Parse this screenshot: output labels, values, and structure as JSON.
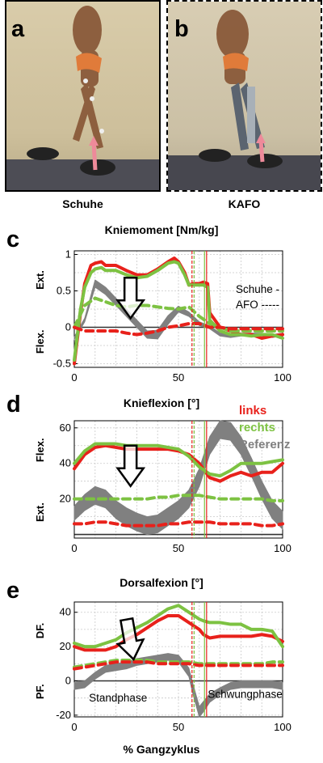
{
  "photos": {
    "a": {
      "letter": "a",
      "caption": "Schuhe"
    },
    "b": {
      "letter": "b",
      "caption": "KAFO"
    }
  },
  "x_label": "% Gangzyklus",
  "legend": {
    "links": "links",
    "rechts": "rechts",
    "referenz": "Referenz"
  },
  "colors": {
    "links": "#e8211b",
    "rechts": "#7dc242",
    "referenz": "#808080",
    "gait_arrow": "#ee8a9a"
  },
  "chart_data": [
    {
      "letter": "c",
      "type": "line",
      "title": "Kniemoment [Nm/kg]",
      "ylim": [
        -0.55,
        1.05
      ],
      "xlim": [
        0,
        100
      ],
      "x_ticks": [
        0,
        50,
        100
      ],
      "y_ticks": [
        -0.5,
        0,
        0.5,
        1
      ],
      "y_tick_labels": [
        "-0.5",
        "0",
        "0.5",
        "1"
      ],
      "y_top_label": "Ext.",
      "y_bottom_label": "Flex.",
      "grid": true,
      "annotation_lines": [
        "Schuhe -",
        "AFO -----"
      ],
      "vertical_markers": [
        {
          "x": 56.5,
          "style": "dashed",
          "series": "links"
        },
        {
          "x": 57.5,
          "style": "dashed",
          "series": "rechts"
        },
        {
          "x": 62.5,
          "style": "solid",
          "series": "rechts"
        },
        {
          "x": 63.5,
          "style": "solid",
          "series": "links"
        }
      ],
      "series": [
        {
          "name": "Referenz",
          "color": "referenz",
          "style": "band",
          "x": [
            0,
            5,
            10,
            15,
            20,
            25,
            30,
            35,
            40,
            45,
            50,
            55,
            60,
            65,
            70,
            75,
            80,
            85,
            90,
            95,
            100
          ],
          "y": [
            -0.15,
            0.1,
            0.6,
            0.5,
            0.35,
            0.2,
            0.05,
            -0.1,
            -0.1,
            0.1,
            0.25,
            0.18,
            0.05,
            0.0,
            -0.1,
            -0.12,
            -0.1,
            -0.1,
            -0.1,
            -0.12,
            -0.1
          ],
          "width": [
            0.04,
            0.05,
            0.1,
            0.1,
            0.1,
            0.1,
            0.1,
            0.1,
            0.12,
            0.12,
            0.08,
            0.06,
            0.05,
            0.04,
            0.04,
            0.04,
            0.04,
            0.04,
            0.04,
            0.04,
            0.04
          ]
        },
        {
          "name": "links Schuhe",
          "color": "links",
          "style": "solid",
          "x": [
            0,
            3,
            5,
            8,
            10,
            13,
            15,
            20,
            25,
            30,
            35,
            40,
            45,
            48,
            50,
            53,
            55,
            57,
            60,
            62,
            64,
            65,
            70,
            75,
            80,
            85,
            90,
            95,
            100
          ],
          "y": [
            -0.5,
            0.2,
            0.6,
            0.85,
            0.88,
            0.9,
            0.85,
            0.85,
            0.78,
            0.72,
            0.72,
            0.8,
            0.9,
            0.95,
            0.9,
            0.75,
            0.58,
            0.6,
            0.6,
            0.62,
            0.6,
            0.2,
            0.0,
            -0.05,
            -0.1,
            -0.1,
            -0.15,
            -0.12,
            -0.1
          ]
        },
        {
          "name": "rechts Schuhe",
          "color": "rechts",
          "style": "solid",
          "x": [
            0,
            3,
            5,
            8,
            10,
            13,
            15,
            20,
            25,
            30,
            35,
            40,
            45,
            48,
            50,
            53,
            55,
            57,
            60,
            62,
            64,
            65,
            70,
            75,
            80,
            85,
            90,
            95,
            100
          ],
          "y": [
            -0.45,
            0.25,
            0.55,
            0.75,
            0.8,
            0.82,
            0.78,
            0.78,
            0.72,
            0.68,
            0.7,
            0.78,
            0.88,
            0.9,
            0.88,
            0.72,
            0.58,
            0.58,
            0.58,
            0.58,
            0.55,
            0.1,
            -0.05,
            -0.1,
            -0.1,
            -0.12,
            -0.1,
            -0.1,
            -0.15
          ]
        },
        {
          "name": "rechts AFO",
          "color": "rechts",
          "style": "dashed",
          "x": [
            0,
            5,
            10,
            15,
            20,
            25,
            30,
            35,
            40,
            45,
            50,
            55,
            60,
            65,
            70,
            75,
            80,
            85,
            90,
            95,
            100
          ],
          "y": [
            0.0,
            0.3,
            0.4,
            0.35,
            0.3,
            0.28,
            0.3,
            0.3,
            0.28,
            0.26,
            0.25,
            0.28,
            0.15,
            0.05,
            0.0,
            -0.05,
            -0.05,
            -0.05,
            -0.05,
            -0.05,
            -0.05
          ]
        },
        {
          "name": "links AFO",
          "color": "links",
          "style": "dashed",
          "x": [
            0,
            5,
            10,
            15,
            20,
            25,
            30,
            35,
            40,
            45,
            50,
            55,
            60,
            65,
            70,
            75,
            80,
            85,
            90,
            95,
            100
          ],
          "y": [
            0.0,
            -0.05,
            -0.05,
            -0.05,
            -0.05,
            -0.08,
            -0.1,
            -0.08,
            -0.05,
            0.0,
            0.02,
            0.05,
            0.05,
            0.0,
            0.0,
            -0.02,
            -0.02,
            -0.02,
            -0.02,
            -0.02,
            -0.02
          ]
        }
      ]
    },
    {
      "letter": "d",
      "type": "line",
      "title": "Knieflexion [°]",
      "ylim": [
        -2,
        64
      ],
      "xlim": [
        0,
        100
      ],
      "x_ticks": [
        0,
        50,
        100
      ],
      "y_ticks": [
        20,
        40,
        60
      ],
      "y_tick_labels": [
        "20",
        "40",
        "60"
      ],
      "y_top_label": "Flex.",
      "y_bottom_label": "Ext.",
      "grid": true,
      "vertical_markers": [
        {
          "x": 56.5,
          "style": "dashed",
          "series": "links"
        },
        {
          "x": 57.5,
          "style": "dashed",
          "series": "rechts"
        },
        {
          "x": 62.5,
          "style": "solid",
          "series": "rechts"
        },
        {
          "x": 63.5,
          "style": "solid",
          "series": "links"
        }
      ],
      "series": [
        {
          "name": "Referenz",
          "color": "referenz",
          "style": "band",
          "x": [
            0,
            5,
            10,
            15,
            20,
            25,
            30,
            35,
            40,
            45,
            50,
            55,
            60,
            65,
            70,
            75,
            80,
            85,
            90,
            95,
            100
          ],
          "y": [
            12,
            18,
            22,
            20,
            14,
            10,
            7,
            5,
            6,
            10,
            14,
            20,
            32,
            50,
            59,
            58,
            50,
            38,
            25,
            14,
            8
          ],
          "width": [
            8,
            9,
            10,
            10,
            10,
            10,
            10,
            10,
            10,
            10,
            10,
            10,
            10,
            10,
            10,
            10,
            10,
            10,
            10,
            10,
            10
          ]
        },
        {
          "name": "links Schuhe",
          "color": "links",
          "style": "solid",
          "x": [
            0,
            5,
            10,
            15,
            20,
            25,
            30,
            35,
            40,
            45,
            50,
            55,
            60,
            65,
            70,
            75,
            80,
            85,
            90,
            95,
            100
          ],
          "y": [
            37,
            45,
            49,
            50,
            49,
            48,
            48,
            48,
            48,
            48,
            47,
            45,
            40,
            32,
            30,
            33,
            35,
            33,
            35,
            35,
            40
          ]
        },
        {
          "name": "rechts Schuhe",
          "color": "rechts",
          "style": "solid",
          "x": [
            0,
            5,
            10,
            15,
            20,
            25,
            30,
            35,
            40,
            45,
            50,
            55,
            60,
            65,
            70,
            75,
            80,
            85,
            90,
            95,
            100
          ],
          "y": [
            40,
            47,
            51,
            51,
            51,
            50,
            50,
            50,
            50,
            49,
            48,
            44,
            38,
            34,
            33,
            36,
            40,
            40,
            40,
            41,
            42
          ]
        },
        {
          "name": "rechts AFO",
          "color": "rechts",
          "style": "dashed",
          "x": [
            0,
            5,
            10,
            15,
            20,
            25,
            30,
            35,
            40,
            45,
            50,
            55,
            60,
            65,
            70,
            75,
            80,
            85,
            90,
            95,
            100
          ],
          "y": [
            20,
            20,
            20,
            20,
            20,
            20,
            20,
            20,
            21,
            21,
            22,
            22,
            22,
            21,
            20,
            20,
            20,
            20,
            20,
            19,
            19
          ]
        },
        {
          "name": "links AFO",
          "color": "links",
          "style": "dashed",
          "x": [
            0,
            5,
            10,
            15,
            20,
            25,
            30,
            35,
            40,
            45,
            50,
            55,
            60,
            65,
            70,
            75,
            80,
            85,
            90,
            95,
            100
          ],
          "y": [
            6,
            6,
            7,
            7,
            6,
            5,
            5,
            5,
            5,
            6,
            6,
            7,
            7,
            7,
            6,
            6,
            6,
            6,
            5,
            5,
            6
          ]
        }
      ]
    },
    {
      "letter": "e",
      "type": "line",
      "title": "Dorsalfexion [°]",
      "ylim": [
        -21,
        46
      ],
      "xlim": [
        0,
        100
      ],
      "x_ticks": [
        0,
        50,
        100
      ],
      "y_ticks": [
        -20,
        0,
        20,
        40
      ],
      "y_tick_labels": [
        "-20",
        "0",
        "20",
        "40"
      ],
      "y_top_label": "DF.",
      "y_bottom_label": "PF.",
      "grid": true,
      "phase_labels": [
        "Standphase",
        "Schwungphase"
      ],
      "vertical_markers": [
        {
          "x": 56.5,
          "style": "dashed",
          "series": "links"
        },
        {
          "x": 57.5,
          "style": "dashed",
          "series": "rechts"
        },
        {
          "x": 62.5,
          "style": "solid",
          "series": "rechts"
        },
        {
          "x": 63.5,
          "style": "solid",
          "series": "links"
        }
      ],
      "series": [
        {
          "name": "Referenz",
          "color": "referenz",
          "style": "band",
          "x": [
            0,
            5,
            10,
            15,
            20,
            25,
            30,
            35,
            40,
            45,
            50,
            55,
            57,
            60,
            62,
            65,
            70,
            75,
            80,
            85,
            90,
            95,
            100
          ],
          "y": [
            -3,
            -2,
            3,
            7,
            8,
            9,
            11,
            12,
            13,
            14,
            13,
            5,
            -5,
            -18,
            -15,
            -10,
            -6,
            -3,
            -2,
            -2,
            -2,
            -2,
            -3
          ],
          "width": [
            4,
            4,
            4,
            4,
            4,
            4,
            4,
            4,
            4,
            4,
            4,
            5,
            6,
            6,
            6,
            5,
            4,
            4,
            4,
            4,
            4,
            4,
            4
          ]
        },
        {
          "name": "links Schuhe",
          "color": "links",
          "style": "solid",
          "x": [
            0,
            5,
            10,
            15,
            20,
            25,
            30,
            35,
            40,
            45,
            50,
            55,
            60,
            62,
            65,
            70,
            75,
            80,
            85,
            90,
            95,
            100
          ],
          "y": [
            20,
            18,
            18,
            18,
            20,
            24,
            27,
            31,
            35,
            38,
            38,
            34,
            30,
            27,
            25,
            26,
            26,
            26,
            26,
            27,
            26,
            23
          ]
        },
        {
          "name": "rechts Schuhe",
          "color": "rechts",
          "style": "solid",
          "x": [
            0,
            5,
            10,
            15,
            20,
            25,
            30,
            35,
            40,
            45,
            50,
            55,
            60,
            62,
            65,
            70,
            75,
            80,
            85,
            90,
            95,
            100
          ],
          "y": [
            22,
            20,
            20,
            22,
            24,
            28,
            31,
            34,
            38,
            42,
            44,
            40,
            36,
            35,
            34,
            34,
            33,
            33,
            30,
            30,
            29,
            20
          ]
        },
        {
          "name": "rechts AFO",
          "color": "rechts",
          "style": "dashed",
          "x": [
            0,
            5,
            10,
            15,
            20,
            25,
            30,
            35,
            40,
            45,
            50,
            55,
            60,
            65,
            70,
            75,
            80,
            85,
            90,
            95,
            100
          ],
          "y": [
            8,
            9,
            10,
            11,
            12,
            12,
            12,
            12,
            11,
            11,
            11,
            11,
            10,
            10,
            10,
            10,
            10,
            10,
            10,
            11,
            11
          ]
        },
        {
          "name": "links AFO",
          "color": "links",
          "style": "dashed",
          "x": [
            0,
            5,
            10,
            15,
            20,
            25,
            30,
            35,
            40,
            45,
            50,
            55,
            60,
            65,
            70,
            75,
            80,
            85,
            90,
            95,
            100
          ],
          "y": [
            7,
            8,
            9,
            10,
            11,
            11,
            11,
            11,
            10,
            10,
            10,
            10,
            9,
            9,
            9,
            9,
            9,
            9,
            9,
            9,
            9
          ]
        }
      ]
    }
  ]
}
